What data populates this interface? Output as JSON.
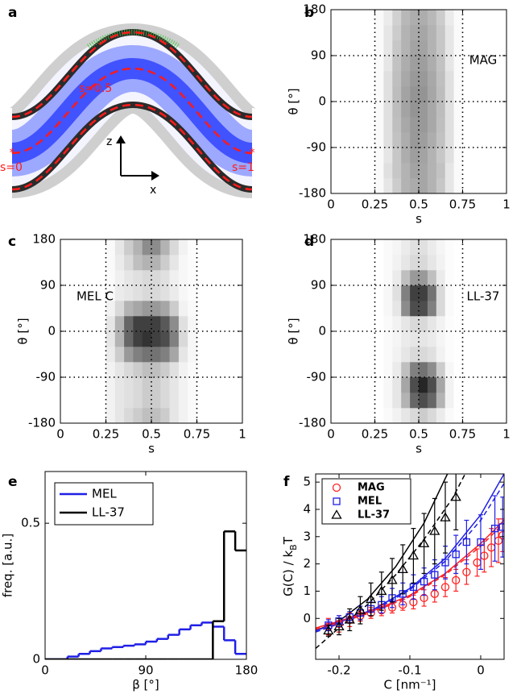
{
  "schematic": {
    "panel": "a",
    "labels": [
      "s=0.5",
      "s=0",
      "s=1",
      "z",
      "x"
    ]
  },
  "chart_data": [
    {
      "type": "heatmap",
      "panel": "b",
      "label": "MAG",
      "xlabel": "s",
      "ylabel": "θ [°]",
      "xlim": [
        0,
        1
      ],
      "ylim": [
        -180,
        180
      ],
      "xticks": [
        0,
        0.25,
        0.5,
        0.75,
        1
      ],
      "yticks": [
        -180,
        -90,
        0,
        90,
        180
      ],
      "grid": true,
      "x": [
        0.25,
        0.3,
        0.35,
        0.4,
        0.45,
        0.5,
        0.55,
        0.6,
        0.65,
        0.7,
        0.75
      ],
      "y": [
        -180,
        -150,
        -120,
        -90,
        -60,
        -30,
        0,
        30,
        60,
        90,
        120,
        150,
        180
      ],
      "z": [
        [
          0.02,
          0.1,
          0.2,
          0.3,
          0.33,
          0.35,
          0.3,
          0.22,
          0.1,
          0.02
        ],
        [
          0.02,
          0.12,
          0.22,
          0.3,
          0.36,
          0.35,
          0.3,
          0.24,
          0.1,
          0.02
        ],
        [
          0.02,
          0.1,
          0.22,
          0.32,
          0.38,
          0.36,
          0.3,
          0.22,
          0.12,
          0.02
        ],
        [
          0.02,
          0.12,
          0.24,
          0.32,
          0.4,
          0.38,
          0.32,
          0.24,
          0.12,
          0.02
        ],
        [
          0.02,
          0.12,
          0.25,
          0.34,
          0.4,
          0.4,
          0.34,
          0.25,
          0.12,
          0.02
        ],
        [
          0.02,
          0.12,
          0.26,
          0.36,
          0.42,
          0.4,
          0.34,
          0.26,
          0.12,
          0.02
        ],
        [
          0.02,
          0.12,
          0.26,
          0.36,
          0.42,
          0.42,
          0.35,
          0.26,
          0.12,
          0.02
        ],
        [
          0.02,
          0.12,
          0.25,
          0.34,
          0.4,
          0.4,
          0.34,
          0.25,
          0.12,
          0.02
        ],
        [
          0.02,
          0.1,
          0.24,
          0.32,
          0.38,
          0.38,
          0.32,
          0.24,
          0.1,
          0.02
        ],
        [
          0.02,
          0.1,
          0.22,
          0.3,
          0.36,
          0.36,
          0.3,
          0.22,
          0.1,
          0.02
        ],
        [
          0.02,
          0.1,
          0.2,
          0.3,
          0.34,
          0.35,
          0.3,
          0.22,
          0.1,
          0.02
        ],
        [
          0.02,
          0.08,
          0.18,
          0.28,
          0.32,
          0.32,
          0.28,
          0.2,
          0.08,
          0.02
        ]
      ]
    },
    {
      "type": "heatmap",
      "panel": "c",
      "label": "MEL C",
      "xlabel": "s",
      "ylabel": "θ [°]",
      "xlim": [
        0,
        1
      ],
      "ylim": [
        -180,
        180
      ],
      "xticks": [
        0,
        0.25,
        0.5,
        0.75,
        1
      ],
      "yticks": [
        -180,
        -90,
        0,
        90,
        180
      ],
      "grid": true,
      "x": [
        0.25,
        0.3,
        0.35,
        0.4,
        0.45,
        0.5,
        0.55,
        0.6,
        0.65,
        0.7,
        0.75
      ],
      "y": [
        -180,
        -150,
        -120,
        -90,
        -60,
        -30,
        0,
        30,
        60,
        90,
        120,
        150,
        180
      ],
      "z": [
        [
          0.05,
          0.1,
          0.15,
          0.2,
          0.25,
          0.25,
          0.2,
          0.1,
          0.05,
          0.02
        ],
        [
          0.05,
          0.1,
          0.12,
          0.15,
          0.2,
          0.2,
          0.15,
          0.1,
          0.05,
          0.02
        ],
        [
          0.05,
          0.1,
          0.12,
          0.15,
          0.2,
          0.2,
          0.15,
          0.1,
          0.05,
          0.02
        ],
        [
          0.05,
          0.1,
          0.15,
          0.2,
          0.25,
          0.25,
          0.2,
          0.12,
          0.05,
          0.02
        ],
        [
          0.08,
          0.2,
          0.4,
          0.5,
          0.55,
          0.55,
          0.5,
          0.35,
          0.1,
          0.03
        ],
        [
          0.1,
          0.3,
          0.6,
          0.75,
          0.8,
          0.75,
          0.7,
          0.5,
          0.15,
          0.03
        ],
        [
          0.1,
          0.3,
          0.6,
          0.75,
          0.75,
          0.75,
          0.65,
          0.45,
          0.12,
          0.03
        ],
        [
          0.05,
          0.15,
          0.3,
          0.35,
          0.4,
          0.4,
          0.35,
          0.2,
          0.05,
          0.02
        ],
        [
          0.02,
          0.08,
          0.1,
          0.12,
          0.15,
          0.15,
          0.12,
          0.08,
          0.03,
          0.01
        ],
        [
          0.02,
          0.06,
          0.1,
          0.12,
          0.15,
          0.15,
          0.12,
          0.06,
          0.03,
          0.01
        ],
        [
          0.02,
          0.08,
          0.15,
          0.25,
          0.3,
          0.3,
          0.2,
          0.1,
          0.03,
          0.01
        ],
        [
          0.02,
          0.1,
          0.2,
          0.3,
          0.45,
          0.45,
          0.3,
          0.15,
          0.05,
          0.01
        ]
      ]
    },
    {
      "type": "heatmap",
      "panel": "d",
      "label": "LL-37",
      "xlabel": "s",
      "ylabel": "θ [°]",
      "xlim": [
        0,
        1
      ],
      "ylim": [
        -180,
        180
      ],
      "xticks": [
        0,
        0.25,
        0.5,
        0.75,
        1
      ],
      "yticks": [
        -180,
        -90,
        0,
        90,
        180
      ],
      "grid": true,
      "x": [
        0.25,
        0.3,
        0.35,
        0.4,
        0.45,
        0.5,
        0.55,
        0.6,
        0.65,
        0.7,
        0.75
      ],
      "y": [
        -180,
        -150,
        -120,
        -90,
        -60,
        -30,
        0,
        30,
        60,
        90,
        120,
        150,
        180
      ],
      "z": [
        [
          0,
          0.02,
          0.05,
          0.1,
          0.15,
          0.2,
          0.15,
          0.08,
          0.02,
          0
        ],
        [
          0,
          0.03,
          0.1,
          0.3,
          0.6,
          0.7,
          0.6,
          0.3,
          0.05,
          0
        ],
        [
          0,
          0.03,
          0.1,
          0.35,
          0.7,
          0.85,
          0.7,
          0.35,
          0.05,
          0
        ],
        [
          0,
          0.02,
          0.08,
          0.25,
          0.5,
          0.55,
          0.45,
          0.2,
          0.03,
          0
        ],
        [
          0,
          0.02,
          0.05,
          0.1,
          0.15,
          0.15,
          0.12,
          0.05,
          0.01,
          0
        ],
        [
          0,
          0.02,
          0.04,
          0.08,
          0.1,
          0.1,
          0.08,
          0.04,
          0.01,
          0
        ],
        [
          0,
          0.02,
          0.05,
          0.1,
          0.15,
          0.15,
          0.1,
          0.05,
          0.01,
          0
        ],
        [
          0,
          0.03,
          0.1,
          0.45,
          0.7,
          0.7,
          0.5,
          0.15,
          0.02,
          0
        ],
        [
          0,
          0.03,
          0.12,
          0.5,
          0.75,
          0.75,
          0.55,
          0.15,
          0.02,
          0
        ],
        [
          0,
          0.02,
          0.08,
          0.25,
          0.4,
          0.4,
          0.25,
          0.08,
          0.01,
          0
        ],
        [
          0,
          0.02,
          0.05,
          0.1,
          0.15,
          0.15,
          0.1,
          0.05,
          0.01,
          0
        ],
        [
          0,
          0.02,
          0.04,
          0.08,
          0.12,
          0.12,
          0.08,
          0.04,
          0.01,
          0
        ]
      ]
    },
    {
      "type": "histogram",
      "panel": "e",
      "xlabel": "β [°]",
      "ylabel": "freq. [a.u.]",
      "xlim": [
        0,
        180
      ],
      "ylim": [
        0,
        0.69
      ],
      "xticks": [
        0,
        90,
        180
      ],
      "yticks": [
        0,
        0.5
      ],
      "legend": "upper left",
      "bins": [
        0,
        10,
        20,
        30,
        40,
        50,
        60,
        70,
        80,
        90,
        100,
        110,
        120,
        130,
        140,
        150,
        160,
        170,
        180
      ],
      "series": [
        {
          "name": "MEL",
          "color": "#1f1fe6",
          "values": [
            0,
            0,
            0.01,
            0.02,
            0.03,
            0.04,
            0.045,
            0.05,
            0.055,
            0.065,
            0.075,
            0.09,
            0.11,
            0.125,
            0.135,
            0.12,
            0.07,
            0.02
          ]
        },
        {
          "name": "LL-37",
          "color": "#000000",
          "values": [
            0,
            0,
            0,
            0,
            0,
            0,
            0,
            0,
            0,
            0,
            0,
            0,
            0,
            0,
            0,
            0.14,
            0.47,
            0.4
          ]
        }
      ]
    },
    {
      "type": "scatter",
      "panel": "f",
      "xlabel": "C [nm⁻¹]",
      "ylabel": [
        "G(C) / k",
        "B",
        "T"
      ],
      "xlim": [
        -0.233,
        0.033
      ],
      "ylim": [
        -1.5,
        5.3
      ],
      "xticks": [
        -0.2,
        -0.1,
        0
      ],
      "yticks": [
        0,
        1,
        2,
        3,
        4,
        5
      ],
      "legend": "upper left",
      "series": [
        {
          "name": "MAG",
          "color": "#ff2020",
          "marker": "circle",
          "x": [
            -0.215,
            -0.2,
            -0.185,
            -0.17,
            -0.155,
            -0.14,
            -0.125,
            -0.11,
            -0.095,
            -0.08,
            -0.065,
            -0.05,
            -0.035,
            -0.02,
            -0.005,
            0.005,
            0.015,
            0.025,
            0.031
          ],
          "values": [
            -0.3,
            -0.2,
            -0.05,
            0.1,
            0.2,
            0.3,
            0.4,
            0.5,
            0.6,
            0.75,
            0.9,
            1.15,
            1.4,
            1.7,
            2.05,
            2.3,
            2.6,
            2.85,
            3.05
          ],
          "errors": [
            0.3,
            0.3,
            0.25,
            0.2,
            0.2,
            0.2,
            0.2,
            0.2,
            0.25,
            0.3,
            0.3,
            0.35,
            0.4,
            0.45,
            0.5,
            0.6,
            0.7,
            0.8,
            0.6
          ]
        },
        {
          "name": "MEL",
          "color": "#1f1fe6",
          "marker": "square",
          "x": [
            -0.215,
            -0.2,
            -0.185,
            -0.17,
            -0.155,
            -0.14,
            -0.125,
            -0.11,
            -0.095,
            -0.08,
            -0.065,
            -0.05,
            -0.035,
            -0.02,
            0.0,
            0.02,
            0.031
          ],
          "values": [
            -0.25,
            -0.1,
            0.05,
            0.2,
            0.35,
            0.5,
            0.75,
            0.9,
            1.15,
            1.35,
            1.6,
            2.05,
            2.35,
            2.8,
            2.8,
            3.3,
            3.35
          ],
          "errors": [
            0.2,
            0.2,
            0.2,
            0.25,
            0.25,
            0.3,
            0.35,
            0.4,
            0.45,
            0.5,
            0.55,
            0.6,
            0.7,
            0.8,
            1.0,
            1.2,
            1.1
          ]
        },
        {
          "name": "LL-37",
          "color": "#000000",
          "marker": "triangle",
          "x": [
            -0.215,
            -0.2,
            -0.185,
            -0.17,
            -0.155,
            -0.14,
            -0.125,
            -0.11,
            -0.095,
            -0.08,
            -0.065,
            -0.05,
            -0.035
          ],
          "values": [
            -0.45,
            -0.3,
            -0.05,
            0.3,
            0.7,
            1.0,
            1.4,
            1.8,
            2.3,
            2.75,
            3.2,
            3.7,
            4.45
          ],
          "errors": [
            0.2,
            0.3,
            0.4,
            0.5,
            0.6,
            0.7,
            0.8,
            0.9,
            1.0,
            1.1,
            1.2,
            1.3,
            1.2
          ]
        }
      ],
      "fits": [
        {
          "color": "#000000",
          "dashed": false,
          "x": [
            -0.233,
            -0.2,
            -0.16,
            -0.12,
            -0.08,
            -0.047
          ],
          "values": [
            -0.45,
            -0.1,
            0.7,
            1.9,
            3.5,
            5.3
          ]
        },
        {
          "color": "#000000",
          "dashed": true,
          "x": [
            -0.233,
            -0.2,
            -0.16,
            -0.12,
            -0.08,
            -0.04,
            -0.022
          ],
          "values": [
            -1.1,
            -0.35,
            0.5,
            1.6,
            2.9,
            4.4,
            5.3
          ]
        },
        {
          "color": "#1f1fe6",
          "dashed": false,
          "x": [
            -0.233,
            -0.2,
            -0.15,
            -0.1,
            -0.05,
            0,
            0.033
          ],
          "values": [
            -0.45,
            -0.15,
            0.35,
            1.1,
            2.2,
            3.8,
            5.3
          ]
        },
        {
          "color": "#1f1fe6",
          "dashed": true,
          "x": [
            -0.233,
            -0.2,
            -0.15,
            -0.1,
            -0.05,
            0,
            0.033
          ],
          "values": [
            -0.5,
            -0.2,
            0.3,
            1.05,
            2.1,
            3.6,
            4.95
          ]
        },
        {
          "color": "#ff2020",
          "dashed": false,
          "x": [
            -0.233,
            -0.2,
            -0.15,
            -0.1,
            -0.05,
            0,
            0.033
          ],
          "values": [
            -0.35,
            -0.1,
            0.3,
            0.85,
            1.65,
            2.75,
            3.6
          ]
        },
        {
          "color": "#ff2020",
          "dashed": true,
          "x": [
            -0.233,
            -0.2,
            -0.15,
            -0.1,
            -0.05,
            0,
            0.033
          ],
          "values": [
            -0.4,
            -0.15,
            0.25,
            0.8,
            1.6,
            2.65,
            3.5
          ]
        }
      ]
    }
  ]
}
